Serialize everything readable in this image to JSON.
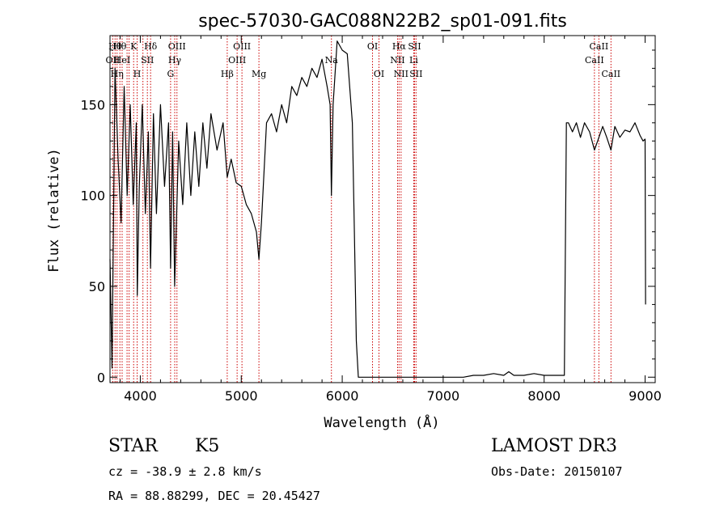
{
  "chart_data": {
    "type": "line",
    "title": "spec-57030-GAC088N22B2_sp01-091.fits",
    "xlabel": "Wavelength (Å)",
    "ylabel": "Flux (relative)",
    "xlim": [
      3700,
      9100
    ],
    "ylim": [
      -3,
      188
    ],
    "xticks": [
      4000,
      5000,
      6000,
      7000,
      8000,
      9000
    ],
    "yticks": [
      0,
      50,
      100,
      150
    ],
    "grid": false,
    "line_color": "#000000",
    "marker_color": "#cc0000",
    "series": [
      {
        "x": [
          3700,
          3720,
          3750,
          3780,
          3810,
          3840,
          3870,
          3900,
          3930,
          3960,
          3970,
          3990,
          4020,
          4050,
          4080,
          4101,
          4130,
          4160,
          4200,
          4240,
          4280,
          4300,
          4320,
          4340,
          4380,
          4420,
          4460,
          4500,
          4540,
          4580,
          4620,
          4660,
          4700,
          4760,
          4820,
          4861,
          4900,
          4950,
          5000,
          5050,
          5100,
          5150,
          5175,
          5200,
          5250,
          5300,
          5350,
          5400,
          5450,
          5500,
          5550,
          5600,
          5650,
          5700,
          5750,
          5800,
          5850,
          5880,
          5893,
          5910,
          5950,
          6000,
          6050,
          6100,
          6120,
          6140,
          6160,
          6500,
          7000,
          7200,
          7300,
          7400,
          7500,
          7600,
          7650,
          7700,
          7800,
          7900,
          8000,
          8100,
          8200,
          8220,
          8240,
          8280,
          8320,
          8360,
          8400,
          8450,
          8498,
          8542,
          8580,
          8620,
          8662,
          8700,
          8750,
          8800,
          8850,
          8900,
          8950,
          8980,
          9000,
          9005
        ],
        "y": [
          65,
          5,
          170,
          120,
          85,
          160,
          100,
          150,
          95,
          140,
          45,
          105,
          150,
          90,
          135,
          60,
          145,
          90,
          150,
          105,
          140,
          60,
          135,
          50,
          130,
          95,
          140,
          100,
          135,
          105,
          140,
          115,
          145,
          125,
          140,
          110,
          120,
          107,
          105,
          95,
          90,
          80,
          65,
          85,
          140,
          145,
          135,
          150,
          140,
          160,
          155,
          165,
          160,
          170,
          165,
          175,
          160,
          150,
          100,
          150,
          185,
          180,
          178,
          140,
          80,
          20,
          0,
          0,
          0,
          0,
          1,
          1,
          2,
          1,
          3,
          1,
          1,
          2,
          1,
          1,
          1,
          140,
          140,
          135,
          140,
          132,
          140,
          135,
          125,
          132,
          138,
          132,
          125,
          138,
          132,
          136,
          135,
          140,
          133,
          130,
          131,
          40
        ]
      }
    ],
    "line_markers": [
      {
        "x": 3727,
        "label": "OII",
        "row": 1
      },
      {
        "x": 3750,
        "label": "Hθ",
        "row": 0
      },
      {
        "x": 3770,
        "label": "Hη",
        "row": 2
      },
      {
        "x": 3798,
        "label": "Hθ",
        "row": 0
      },
      {
        "x": 3820,
        "label": "HeI",
        "row": 1
      },
      {
        "x": 3869,
        "label": "",
        "row": 0
      },
      {
        "x": 3889,
        "label": "",
        "row": 0
      },
      {
        "x": 3934,
        "label": "K",
        "row": 0
      },
      {
        "x": 3969,
        "label": "H",
        "row": 2
      },
      {
        "x": 4026,
        "label": "",
        "row": 0
      },
      {
        "x": 4070,
        "label": "SII",
        "row": 1
      },
      {
        "x": 4102,
        "label": "Hδ",
        "row": 0
      },
      {
        "x": 4300,
        "label": "G",
        "row": 2
      },
      {
        "x": 4341,
        "label": "Hγ",
        "row": 1
      },
      {
        "x": 4363,
        "label": "OIII",
        "row": 0
      },
      {
        "x": 4861,
        "label": "Hβ",
        "row": 2
      },
      {
        "x": 4959,
        "label": "OIII",
        "row": 1
      },
      {
        "x": 5007,
        "label": "OIII",
        "row": 0
      },
      {
        "x": 5175,
        "label": "Mg",
        "row": 2
      },
      {
        "x": 5893,
        "label": "Na",
        "row": 1
      },
      {
        "x": 6300,
        "label": "OI",
        "row": 0
      },
      {
        "x": 6364,
        "label": "OI",
        "row": 2
      },
      {
        "x": 6548,
        "label": "NII",
        "row": 1
      },
      {
        "x": 6563,
        "label": "Hα",
        "row": 0
      },
      {
        "x": 6583,
        "label": "NII",
        "row": 2
      },
      {
        "x": 6708,
        "label": "Li",
        "row": 1
      },
      {
        "x": 6716,
        "label": "SII",
        "row": 0
      },
      {
        "x": 6731,
        "label": "SII",
        "row": 2
      },
      {
        "x": 8498,
        "label": "CaII",
        "row": 1
      },
      {
        "x": 8542,
        "label": "CaII",
        "row": 0
      },
      {
        "x": 8662,
        "label": "CaII",
        "row": 2
      }
    ]
  },
  "info": {
    "object_class": "STAR",
    "subclass": "K5",
    "survey": "LAMOST DR3",
    "cz": "cz = -38.9 ± 2.8 km/s",
    "obs_date": "Obs-Date: 20150107",
    "coords": "RA =  88.88299, DEC =  20.45427"
  }
}
